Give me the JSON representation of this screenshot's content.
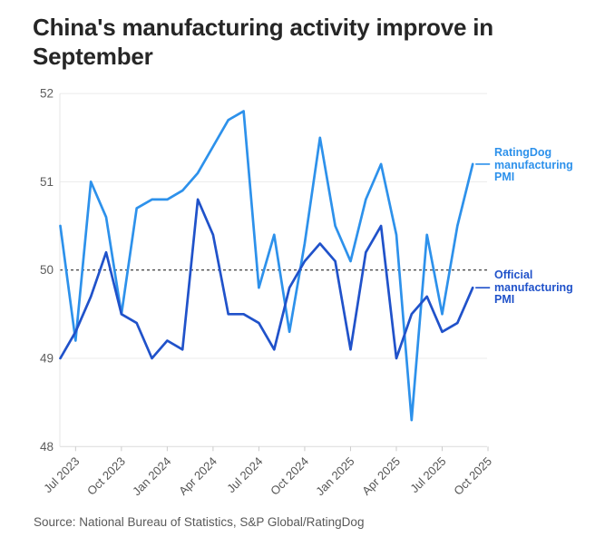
{
  "title": {
    "line1": "China's manufacturing activity improve in",
    "line2": "September"
  },
  "source": "Source: National Bureau of Statistics, S&P Global/RatingDog",
  "colors": {
    "ratingdog_blue": "#2D91EB",
    "official_blue": "#2052CA",
    "gridline": "#ebebeb",
    "baseline": "#dcdcdc",
    "axis_line": "#e5e5e5",
    "tick_mark": "#cccccc",
    "reference_dash": "#2b2b2b",
    "axis_text": "#5c5c5c",
    "title_text": "#262626",
    "source_text": "#595959"
  },
  "chart_data": {
    "type": "line",
    "x": [
      "Jun 2023",
      "Jul 2023",
      "Aug 2023",
      "Sep 2023",
      "Oct 2023",
      "Nov 2023",
      "Dec 2023",
      "Jan 2024",
      "Feb 2024",
      "Mar 2024",
      "Apr 2024",
      "May 2024",
      "Jun 2024",
      "Jul 2024",
      "Aug 2024",
      "Sep 2024",
      "Oct 2024",
      "Nov 2024",
      "Dec 2024",
      "Jan 2025",
      "Feb 2025",
      "Mar 2025",
      "Apr 2025",
      "May 2025",
      "Jun 2025",
      "Jul 2025",
      "Aug 2025",
      "Sep 2025"
    ],
    "series": [
      {
        "id": "ratingdog",
        "name": "RatingDog manufacturing PMI",
        "color": "#2D91EB",
        "values": [
          50.5,
          49.2,
          51.0,
          50.6,
          49.5,
          50.7,
          50.8,
          50.8,
          50.9,
          51.1,
          51.4,
          51.7,
          51.8,
          49.8,
          50.4,
          49.3,
          50.3,
          51.5,
          50.5,
          50.1,
          50.8,
          51.2,
          50.4,
          48.3,
          50.4,
          49.5,
          50.5,
          51.2
        ]
      },
      {
        "id": "official",
        "name": "Official manufacturing PMI",
        "color": "#2052CA",
        "values": [
          49.0,
          49.3,
          49.7,
          50.2,
          49.5,
          49.4,
          49.0,
          49.2,
          49.1,
          50.8,
          50.4,
          49.5,
          49.5,
          49.4,
          49.1,
          49.8,
          50.1,
          50.3,
          50.1,
          49.1,
          50.2,
          50.5,
          49.0,
          49.5,
          49.7,
          49.3,
          49.4,
          49.8
        ]
      }
    ],
    "ylim": [
      48,
      52
    ],
    "yticks": [
      52,
      51,
      50,
      49,
      48
    ],
    "xticks": [
      "Jul 2023",
      "Oct 2023",
      "Jan 2024",
      "Apr 2024",
      "Jul 2024",
      "Oct 2024",
      "Jan 2025",
      "Apr 2025",
      "Jul 2025",
      "Oct 2025"
    ],
    "xtick_every_months": 3,
    "reference_line": 50,
    "grid": true,
    "legend_position": "right-of-line-ends"
  }
}
